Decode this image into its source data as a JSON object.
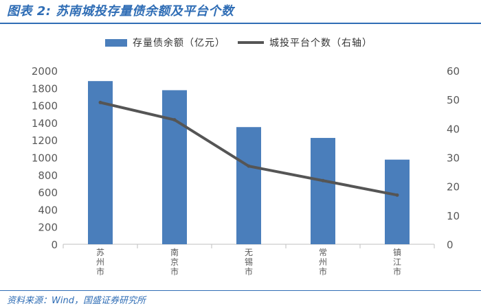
{
  "header": {
    "title": "图表 2:  苏南城投存量债余额及平台个数"
  },
  "footer": {
    "source": "资料来源：Wind，国盛证券研究所"
  },
  "colors": {
    "accent": "#2f6db5",
    "bar": "#4a7ebb",
    "line": "#555555",
    "axis_text": "#595959"
  },
  "chart_data": {
    "type": "bar",
    "categories": [
      "苏州市",
      "南京市",
      "无锡市",
      "常州市",
      "镇江市"
    ],
    "series": [
      {
        "name": "存量债余额（亿元）",
        "type": "bar",
        "axis": "left",
        "values": [
          1880,
          1775,
          1350,
          1225,
          975
        ]
      },
      {
        "name": "城投平台个数（右轴）",
        "type": "line",
        "axis": "right",
        "values": [
          49,
          43,
          27,
          22,
          17
        ]
      }
    ],
    "y_left": {
      "range": [
        0,
        2000
      ],
      "ticks": [
        "0",
        "200",
        "400",
        "600",
        "800",
        "1000",
        "1200",
        "1400",
        "1600",
        "1800",
        "2000"
      ]
    },
    "y_right": {
      "range": [
        0,
        60
      ],
      "ticks": [
        "0",
        "10",
        "20",
        "30",
        "40",
        "50",
        "60"
      ]
    },
    "grid": false,
    "legend_position": "top"
  }
}
